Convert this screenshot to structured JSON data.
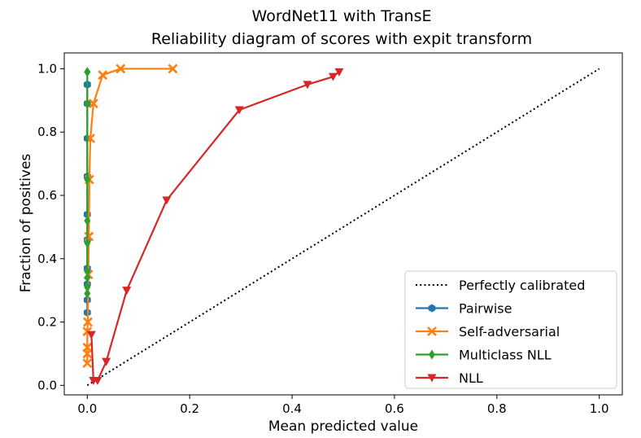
{
  "chart_data": {
    "type": "line",
    "title": "WordNet11 with TransE",
    "subtitle": "Reliability diagram of scores with expit transform",
    "xlabel": "Mean predicted value",
    "ylabel": "Fraction of positives",
    "xlim": [
      -0.045,
      1.045
    ],
    "ylim": [
      -0.03,
      1.05
    ],
    "xticks": [
      0.0,
      0.2,
      0.4,
      0.6,
      0.8,
      1.0
    ],
    "yticks": [
      0.0,
      0.2,
      0.4,
      0.6,
      0.8,
      1.0
    ],
    "xtick_labels": [
      "0.0",
      "0.2",
      "0.4",
      "0.6",
      "0.8",
      "1.0"
    ],
    "ytick_labels": [
      "0.0",
      "0.2",
      "0.4",
      "0.6",
      "0.8",
      "1.0"
    ],
    "grid": false,
    "legend_position": "bottom-right",
    "reference": {
      "name": "Perfectly calibrated",
      "x": [
        0.0,
        1.0
      ],
      "y": [
        0.0,
        1.0
      ],
      "color": "#000000",
      "style": "dotted"
    },
    "series": [
      {
        "name": "Pairwise",
        "color": "#1f77b4",
        "marker": "hexagon",
        "x": [
          0.0,
          0.0,
          0.0,
          0.0,
          0.0,
          0.0,
          0.0,
          0.0,
          0.0,
          0.0,
          0.0,
          0.0
        ],
        "y": [
          0.23,
          0.27,
          0.32,
          0.37,
          0.46,
          0.54,
          0.66,
          0.78,
          0.89,
          0.95,
          0.95,
          0.66
        ]
      },
      {
        "name": "Self-adversarial",
        "color": "#ff7f0e",
        "marker": "x",
        "x": [
          0.0,
          0.0,
          0.0,
          0.0,
          0.001,
          0.002,
          0.003,
          0.004,
          0.006,
          0.012,
          0.03,
          0.065,
          0.167
        ],
        "y": [
          0.07,
          0.1,
          0.12,
          0.17,
          0.2,
          0.35,
          0.47,
          0.65,
          0.78,
          0.89,
          0.98,
          1.0,
          1.0
        ]
      },
      {
        "name": "Multiclass NLL",
        "color": "#2ca02c",
        "marker": "diamond",
        "x": [
          0.0,
          0.0,
          0.0,
          0.0,
          0.0,
          0.0,
          0.0,
          0.0,
          0.0,
          0.0
        ],
        "y": [
          0.29,
          0.31,
          0.34,
          0.36,
          0.45,
          0.52,
          0.65,
          0.89,
          0.99,
          0.99
        ]
      },
      {
        "name": "NLL",
        "color": "#d62728",
        "marker": "triangle-down",
        "x": [
          0.008,
          0.012,
          0.02,
          0.037,
          0.077,
          0.155,
          0.297,
          0.43,
          0.48,
          0.492
        ],
        "y": [
          0.16,
          0.015,
          0.015,
          0.075,
          0.3,
          0.585,
          0.87,
          0.95,
          0.975,
          0.99
        ]
      }
    ]
  }
}
